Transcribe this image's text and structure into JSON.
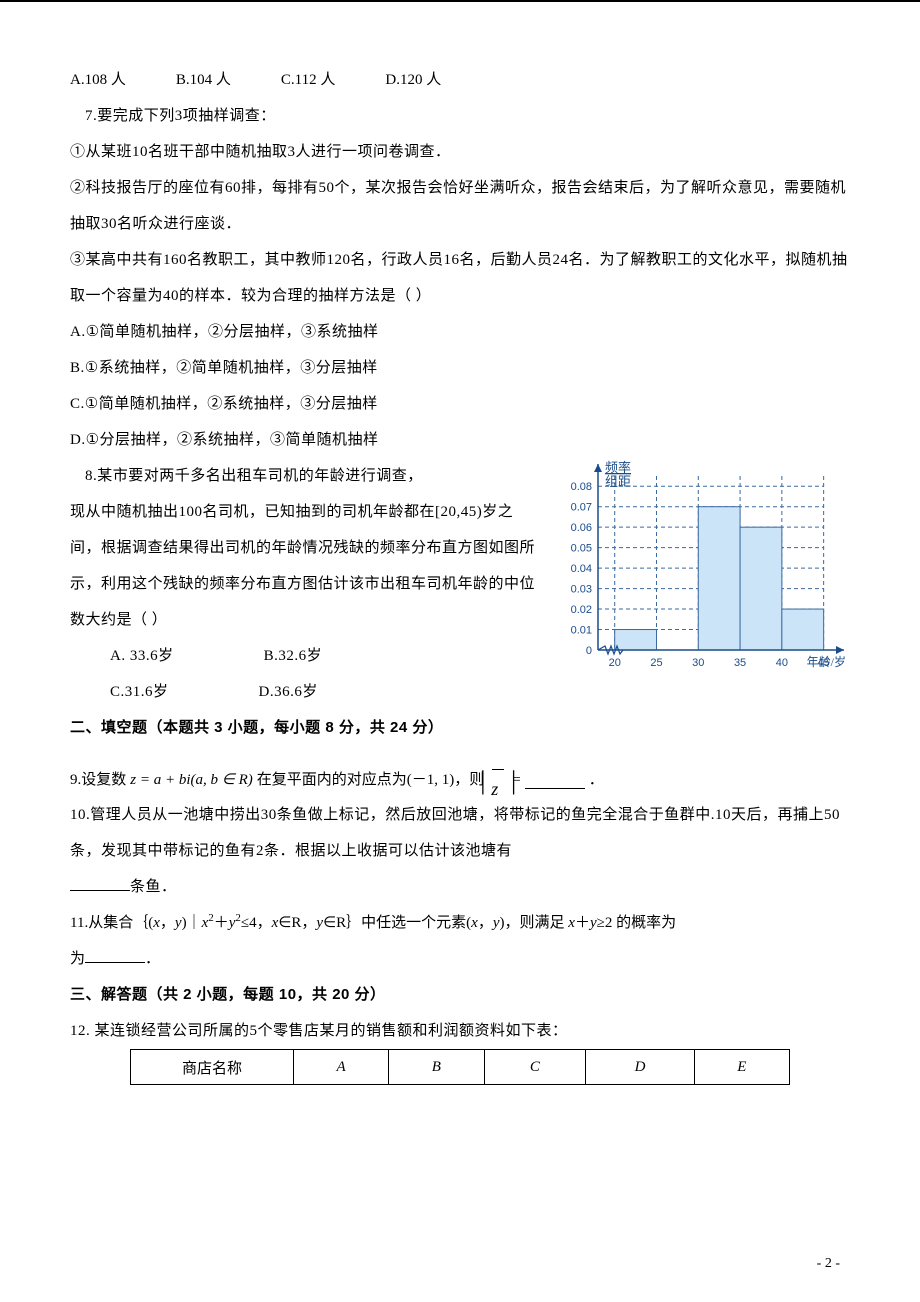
{
  "q6": {
    "options": [
      {
        "label": "A.",
        "val": "108",
        "unit": "人"
      },
      {
        "label": "B.",
        "val": "104",
        "unit": "人"
      },
      {
        "label": "C.",
        "val": "112",
        "unit": "人"
      },
      {
        "label": "D.",
        "val": "120",
        "unit": "人"
      }
    ]
  },
  "q7": {
    "stem": "7.要完成下列3项抽样调查：",
    "l1": "①从某班10名班干部中随机抽取3人进行一项问卷调查．",
    "l2": "②科技报告厅的座位有60排，每排有50个，某次报告会恰好坐满听众，报告会结束后，为了解听众意见，需要随机抽取30名听众进行座谈．",
    "l3": "③某高中共有160名教职工，其中教师120名，行政人员16名，后勤人员24名．为了解教职工的文化水平，拟随机抽取一个容量为40的样本．较为合理的抽样方法是（  ）",
    "optA": "A.①简单随机抽样，②分层抽样，③系统抽样",
    "optB": "B.①系统抽样，②简单随机抽样，③分层抽样",
    "optC": "C.①简单随机抽样，②系统抽样，③分层抽样",
    "optD": "D.①分层抽样，②系统抽样，③简单随机抽样"
  },
  "q8": {
    "stem1": "8.某市要对两千多名出租车司机的年龄进行调查，",
    "stem2": "现从中随机抽出100名司机，已知抽到的司机年龄都在[20,45)岁之间，根据调查结果得出司机的年龄情况残缺的频率分布直方图如图所示，利用这个残缺的频率分布直方图估计该市出租车司机年龄的中位数大约是（        ）",
    "opts": [
      {
        "label": "A.",
        "val": "33.6岁"
      },
      {
        "label": "B.",
        "val": "32.6岁"
      },
      {
        "label": "C.",
        "val": "31.6岁"
      },
      {
        "label": "D.",
        "val": "36.6岁"
      }
    ]
  },
  "histogram": {
    "y_title_top": "频率",
    "y_title_bot": "组距",
    "x_title": "年龄/岁",
    "x_ticks": [
      "20",
      "25",
      "30",
      "35",
      "40",
      "45"
    ],
    "y_ticks": [
      "0",
      "0.01",
      "0.02",
      "0.03",
      "0.04",
      "0.05",
      "0.06",
      "0.07",
      "0.08"
    ],
    "bars": [
      {
        "x0": 20,
        "x1": 25,
        "h": 0.01
      },
      {
        "x0": 30,
        "x1": 35,
        "h": 0.07
      },
      {
        "x0": 35,
        "x1": 40,
        "h": 0.06
      },
      {
        "x0": 40,
        "x1": 45,
        "h": 0.02
      }
    ],
    "grid_y": [
      0.01,
      0.02,
      0.03,
      0.04,
      0.05,
      0.06,
      0.07,
      0.08
    ],
    "grid_x": [
      20,
      25,
      30,
      35,
      40,
      45
    ],
    "bar_fill": "#cce4f7",
    "bar_stroke": "#3b6aa0",
    "grid_color": "#3b6aa0",
    "font_color": "#1a4c8b",
    "xlim": [
      18,
      46
    ],
    "ylim": [
      0,
      0.085
    ]
  },
  "section2": "二、填空题（本题共 3 小题，每小题 8 分，共 24 分）",
  "q9": {
    "prefix": "9.设复数",
    "expr": "z = a + bi(a, b ∈ R)",
    "mid": "在复平面内的对应点为(－1, 1)，则",
    "eq": " = ",
    "tail": "．"
  },
  "q10": {
    "text": "10.管理人员从一池塘中捞出30条鱼做上标记，然后放回池塘，将带标记的鱼完全混合于鱼群中.10天后，再捕上50条，发现其中带标记的鱼有2条．根据以上收据可以估计该池塘有",
    "tail": "条鱼．"
  },
  "q11": {
    "p1": "11.从集合｛(",
    "x": "x",
    "c1": "，",
    "y": "y",
    "p2": ")｜",
    "p3": "≤4，",
    "p4": "∈R，",
    "p5": "∈R｝中任选一个元素(",
    "p6": ")，则满足 ",
    "plus": "＋",
    "p7": "≥2 的概率为",
    "tail": "．"
  },
  "section3": "三、解答题（共 2 小题，每题 10，共 20 分）",
  "q12": {
    "stem": "12. 某连锁经营公司所属的5个零售店某月的销售额和利润额资料如下表：",
    "headers": [
      "商店名称",
      "A",
      "B",
      "C",
      "D",
      "E"
    ]
  },
  "pagenum": "- 2 -"
}
